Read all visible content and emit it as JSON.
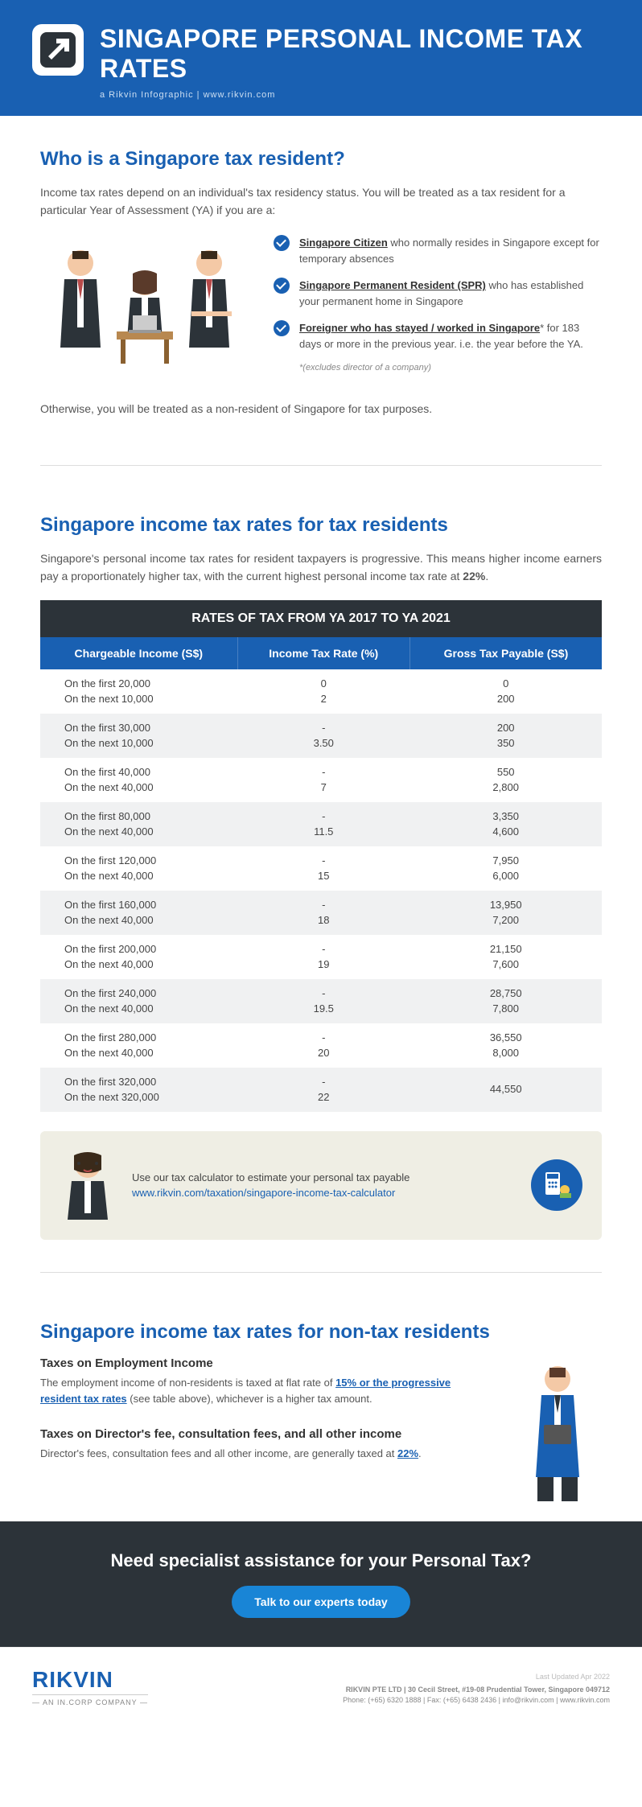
{
  "header": {
    "title": "SINGAPORE PERSONAL INCOME TAX RATES",
    "subtitle": "a Rikvin Infographic   |   www.rikvin.com"
  },
  "s1": {
    "heading": "Who is a Singapore tax resident?",
    "intro": "Income tax rates depend on an individual's tax residency status. You will be treated as a tax resident for a particular Year of Assessment (YA) if you are a:",
    "bullets": [
      {
        "bold": "Singapore Citizen",
        "rest": " who normally resides in Singapore except for temporary absences"
      },
      {
        "bold": "Singapore Permanent Resident (SPR)",
        "rest": " who has established your permanent home in Singapore"
      },
      {
        "bold": "Foreigner who has stayed / worked in Singapore",
        "rest": "* for 183 days or more in the previous year. i.e. the year before the YA."
      }
    ],
    "footnote": "*(excludes director of a company)",
    "outro": "Otherwise, you will be treated as a non-resident of Singapore for tax purposes."
  },
  "s2": {
    "heading": "Singapore income tax rates for tax residents",
    "intro_pre": "Singapore's personal income tax rates for resident taxpayers is progressive. This means higher income earners pay a proportionately higher tax, with the current highest personal income tax rate at ",
    "intro_rate": "22%",
    "intro_post": ".",
    "table": {
      "title": "RATES OF TAX FROM YA 2017 TO YA 2021",
      "columns": [
        "Chargeable Income (S$)",
        "Income Tax Rate (%)",
        "Gross Tax Payable (S$)"
      ],
      "rows": [
        {
          "ci": [
            "On the first 20,000",
            "On the next 10,000"
          ],
          "rate": [
            "0",
            "2"
          ],
          "tax": [
            "0",
            "200"
          ]
        },
        {
          "ci": [
            "On the first 30,000",
            "On the next 10,000"
          ],
          "rate": [
            "-",
            "3.50"
          ],
          "tax": [
            "200",
            "350"
          ]
        },
        {
          "ci": [
            "On the first 40,000",
            "On the next 40,000"
          ],
          "rate": [
            "-",
            "7"
          ],
          "tax": [
            "550",
            "2,800"
          ]
        },
        {
          "ci": [
            "On the first 80,000",
            "On the next 40,000"
          ],
          "rate": [
            "-",
            "11.5"
          ],
          "tax": [
            "3,350",
            "4,600"
          ]
        },
        {
          "ci": [
            "On the first 120,000",
            "On the next 40,000"
          ],
          "rate": [
            "-",
            "15"
          ],
          "tax": [
            "7,950",
            "6,000"
          ]
        },
        {
          "ci": [
            "On the first 160,000",
            "On the next 40,000"
          ],
          "rate": [
            "-",
            "18"
          ],
          "tax": [
            "13,950",
            "7,200"
          ]
        },
        {
          "ci": [
            "On the first 200,000",
            "On the next 40,000"
          ],
          "rate": [
            "-",
            "19"
          ],
          "tax": [
            "21,150",
            "7,600"
          ]
        },
        {
          "ci": [
            "On the first 240,000",
            "On the next 40,000"
          ],
          "rate": [
            "-",
            "19.5"
          ],
          "tax": [
            "28,750",
            "7,800"
          ]
        },
        {
          "ci": [
            "On the first 280,000",
            "On the next 40,000"
          ],
          "rate": [
            "-",
            "20"
          ],
          "tax": [
            "36,550",
            "8,000"
          ]
        },
        {
          "ci": [
            "On the first 320,000",
            "On the next 320,000"
          ],
          "rate": [
            "-",
            "22"
          ],
          "tax": [
            "44,550",
            ""
          ]
        }
      ]
    },
    "calc_msg": "Use our tax calculator to estimate your personal tax payable",
    "calc_link": "www.rikvin.com/taxation/singapore-income-tax-calculator"
  },
  "s3": {
    "heading": "Singapore income tax rates for non-tax residents",
    "block1_title": "Taxes on Employment Income",
    "block1_pre": "The employment income of non-residents is taxed at flat rate of ",
    "block1_link": "15% or the progressive resident tax rates",
    "block1_post": " (see table above), whichever is a higher tax amount.",
    "block2_title": "Taxes on Director's fee, consultation fees, and all other income",
    "block2_pre": "Director's fees, consultation fees and all other income, are generally taxed at ",
    "block2_rate": "22%",
    "block2_post": "."
  },
  "cta": {
    "heading": "Need specialist assistance for your Personal Tax?",
    "button": "Talk to our experts today"
  },
  "footer": {
    "brand": "RIKVIN",
    "tagline": "— AN IN.CORP COMPANY —",
    "updated": "Last Updated Apr 2022",
    "line1": "RIKVIN PTE LTD | 30 Cecil Street, #19-08 Prudential Tower, Singapore 049712",
    "line2": "Phone: (+65) 6320 1888 | Fax: (+65) 6438 2436 | info@rikvin.com | www.rikvin.com"
  },
  "colors": {
    "primary": "#1960b2",
    "dark": "#2c3339",
    "calc_bg": "#efeee4",
    "row_alt": "#f0f1f2"
  }
}
